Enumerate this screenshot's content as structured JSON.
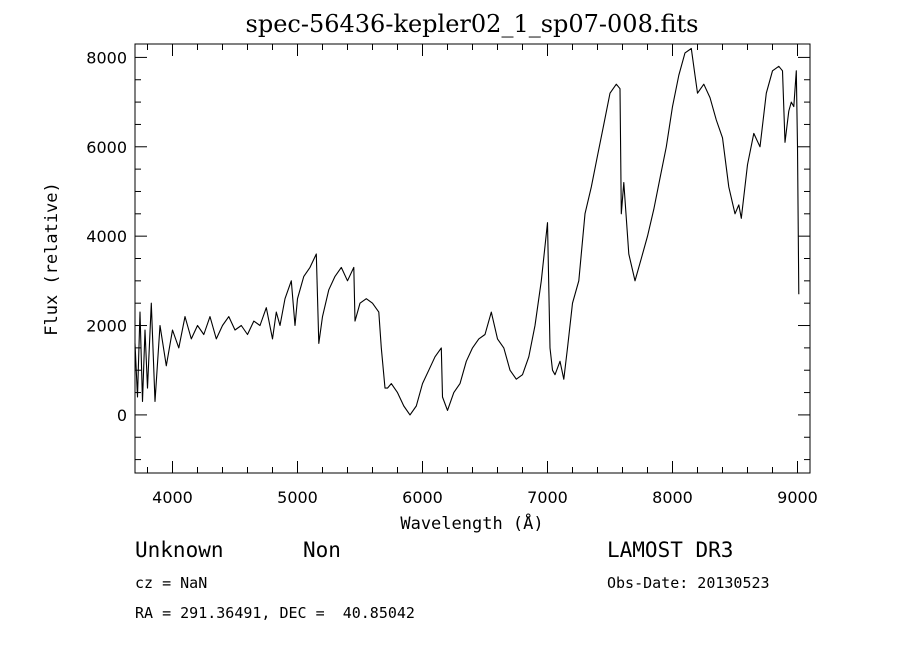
{
  "chart_data": {
    "type": "line",
    "title": "spec-56436-kepler02_1_sp07-008.fits",
    "xlabel": "Wavelength (Å)",
    "ylabel": "Flux (relative)",
    "xlim": [
      3700,
      9100
    ],
    "ylim": [
      -1300,
      8300
    ],
    "x_ticks": [
      4000,
      5000,
      6000,
      7000,
      8000,
      9000
    ],
    "y_ticks": [
      0,
      2000,
      4000,
      6000,
      8000
    ],
    "grid": false,
    "series": [
      {
        "x": [
          3700,
          3720,
          3740,
          3760,
          3780,
          3800,
          3830,
          3860,
          3900,
          3950,
          4000,
          4050,
          4100,
          4150,
          4200,
          4250,
          4300,
          4350,
          4400,
          4450,
          4500,
          4550,
          4600,
          4650,
          4700,
          4750,
          4800,
          4830,
          4860,
          4900,
          4950,
          4980,
          5000,
          5050,
          5100,
          5150,
          5170,
          5200,
          5250,
          5300,
          5350,
          5400,
          5450,
          5460,
          5500,
          5550,
          5600,
          5650,
          5670,
          5700,
          5720,
          5750,
          5800,
          5850,
          5900,
          5950,
          6000,
          6050,
          6100,
          6150,
          6160,
          6200,
          6250,
          6300,
          6350,
          6400,
          6450,
          6500,
          6550,
          6600,
          6650,
          6700,
          6750,
          6800,
          6850,
          6900,
          6950,
          7000,
          7020,
          7040,
          7060,
          7100,
          7130,
          7160,
          7200,
          7250,
          7300,
          7350,
          7400,
          7450,
          7500,
          7550,
          7580,
          7590,
          7610,
          7650,
          7700,
          7750,
          7800,
          7850,
          7900,
          7950,
          8000,
          8050,
          8100,
          8150,
          8180,
          8200,
          8250,
          8300,
          8350,
          8400,
          8450,
          8500,
          8530,
          8550,
          8600,
          8650,
          8700,
          8750,
          8800,
          8850,
          8880,
          8900,
          8930,
          8950,
          8970,
          8990,
          9000,
          9010
        ],
        "y": [
          1600,
          400,
          2300,
          300,
          1900,
          600,
          2500,
          300,
          2000,
          1100,
          1900,
          1500,
          2200,
          1700,
          2000,
          1800,
          2200,
          1700,
          2000,
          2200,
          1900,
          2000,
          1800,
          2100,
          2000,
          2400,
          1700,
          2300,
          2000,
          2600,
          3000,
          2000,
          2600,
          3100,
          3300,
          3600,
          1600,
          2200,
          2800,
          3100,
          3300,
          3000,
          3300,
          2100,
          2500,
          2600,
          2500,
          2300,
          1500,
          600,
          600,
          700,
          500,
          200,
          0,
          200,
          700,
          1000,
          1300,
          1500,
          400,
          100,
          500,
          700,
          1200,
          1500,
          1700,
          1800,
          2300,
          1700,
          1500,
          1000,
          800,
          900,
          1300,
          2000,
          3000,
          4300,
          1500,
          1000,
          900,
          1200,
          800,
          1500,
          2500,
          3000,
          4500,
          5100,
          5800,
          6500,
          7200,
          7400,
          7300,
          4500,
          5200,
          3600,
          3000,
          3500,
          4000,
          4600,
          5300,
          6000,
          6900,
          7600,
          8100,
          8200,
          7600,
          7200,
          7400,
          7100,
          6600,
          6200,
          5100,
          4500,
          4700,
          4400,
          5600,
          6300,
          6000,
          7200,
          7700,
          7800,
          7700,
          6100,
          6800,
          7000,
          6900,
          7700,
          6000,
          2700
        ]
      }
    ]
  },
  "annotations": {
    "class": "Unknown",
    "subclass": "Non",
    "survey": "LAMOST DR3",
    "redshift": "cz = NaN",
    "obs_date": "Obs-Date: 20130523",
    "coords": "RA = 291.36491, DEC =  40.85042"
  }
}
